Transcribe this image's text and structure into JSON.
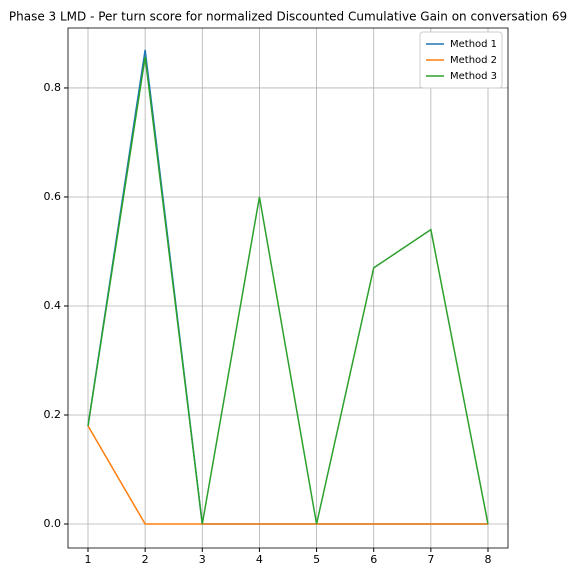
{
  "chart_data": {
    "type": "line",
    "title": "Phase 3 LMD - Per turn score for normalized Discounted Cumulative Gain on conversation 69",
    "x": [
      1,
      2,
      3,
      4,
      5,
      6,
      7,
      8
    ],
    "series": [
      {
        "name": "Method 1",
        "color": "#1f77b4",
        "values": [
          0.18,
          0.87,
          0,
          0,
          0,
          0,
          0,
          0
        ]
      },
      {
        "name": "Method 2",
        "color": "#ff7f0e",
        "values": [
          0.18,
          0,
          0,
          0,
          0,
          0,
          0,
          0
        ]
      },
      {
        "name": "Method 3",
        "color": "#2ca02c",
        "values": [
          0.18,
          0.857,
          0,
          0.6,
          0,
          0.47,
          0.54,
          0
        ]
      }
    ],
    "xlim": [
      0.65,
      8.35
    ],
    "xticks": [
      1,
      2,
      3,
      4,
      5,
      6,
      7,
      8
    ],
    "ylim": [
      -0.044,
      0.91
    ],
    "yticks": [
      {
        "value": 0,
        "label": "0.0"
      },
      0.2,
      0.4,
      0.6,
      0.8
    ],
    "grid": true,
    "legend": "upper right"
  }
}
